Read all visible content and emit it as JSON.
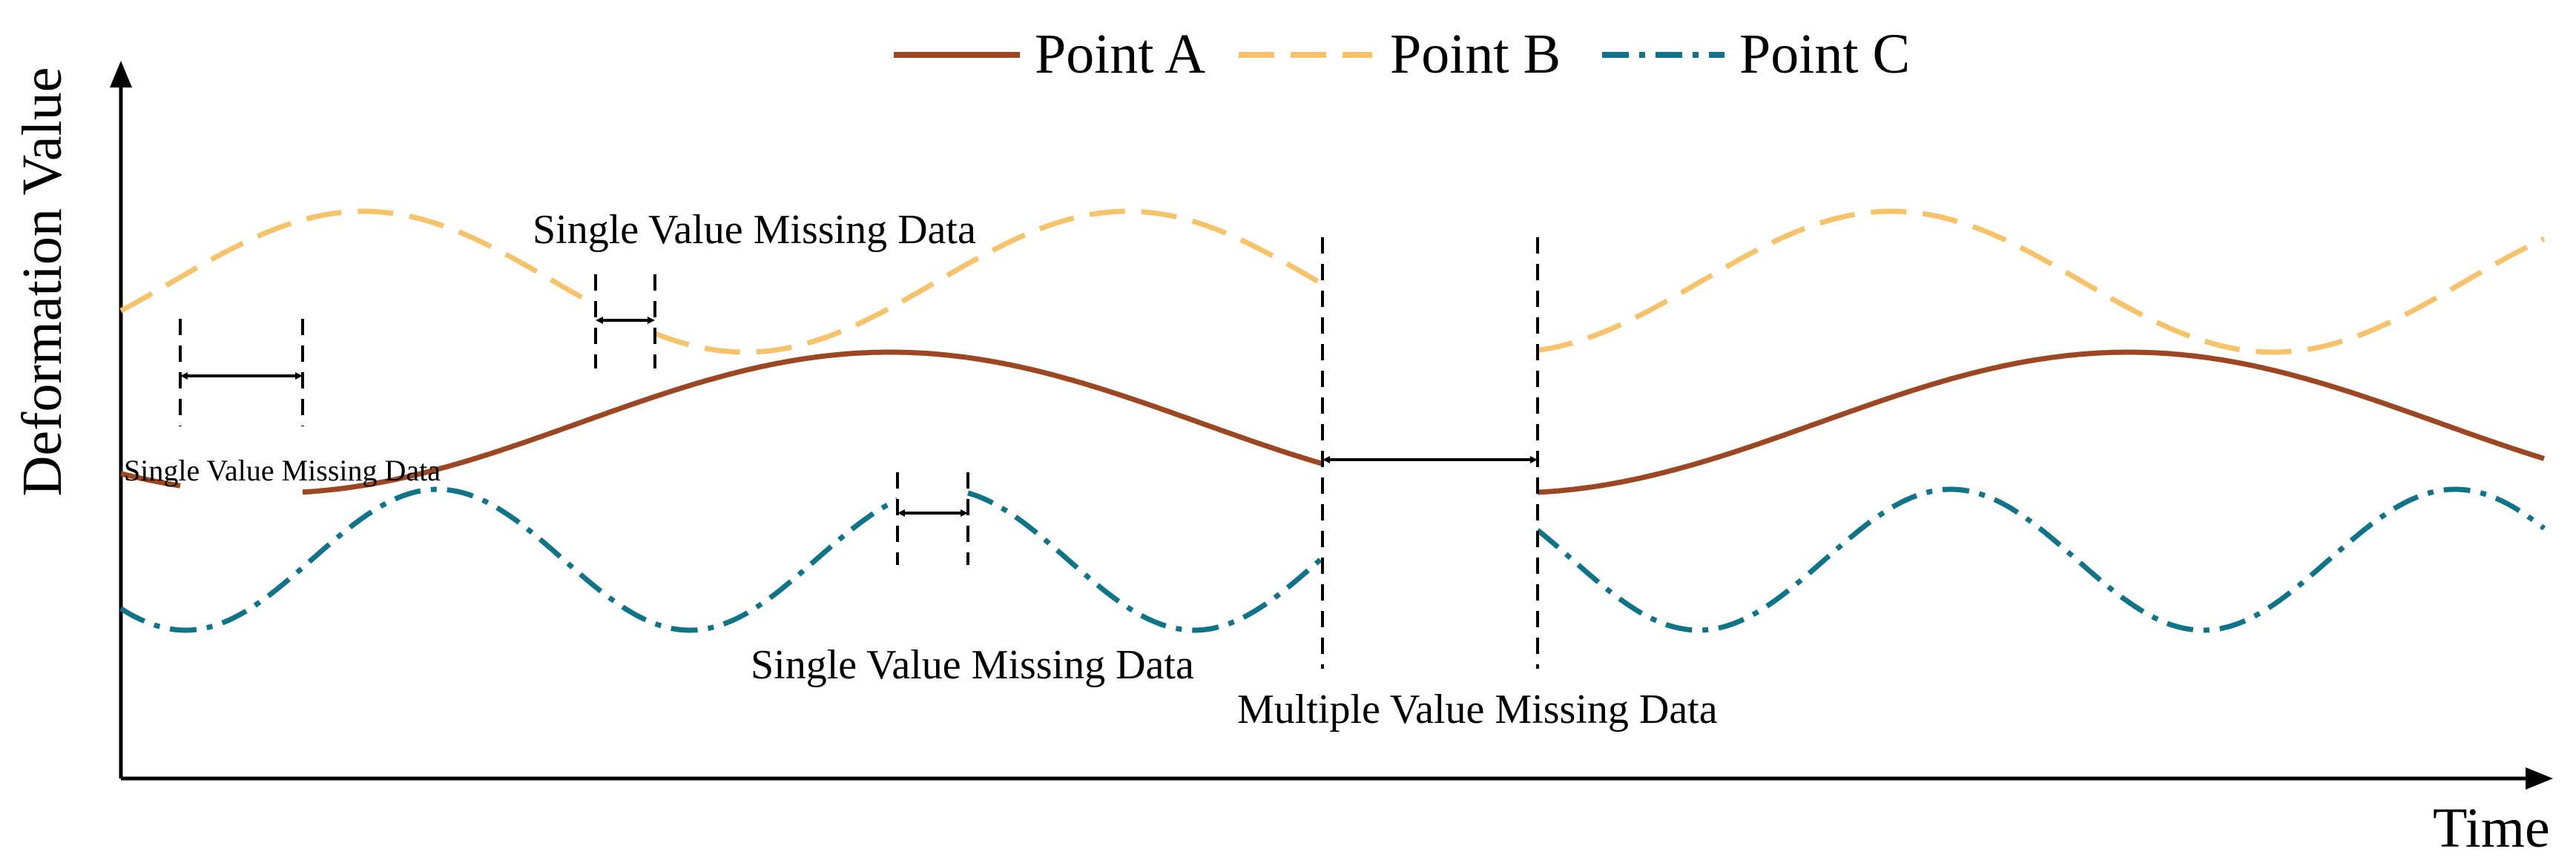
{
  "axes": {
    "y_label": "Deformation Value",
    "x_label": "Time"
  },
  "legend": [
    {
      "label": "Point A",
      "color": "#9c4722",
      "style": "solid"
    },
    {
      "label": "Point B",
      "color": "#f6c36a",
      "style": "dashed"
    },
    {
      "label": "Point C",
      "color": "#0f7487",
      "style": "dash-dot"
    }
  ],
  "annotations": {
    "single_a": "Single Value Missing Data",
    "single_b": "Single Value Missing Data",
    "single_c": "Single Value Missing Data",
    "multiple": "Multiple Value Missing Data"
  }
}
